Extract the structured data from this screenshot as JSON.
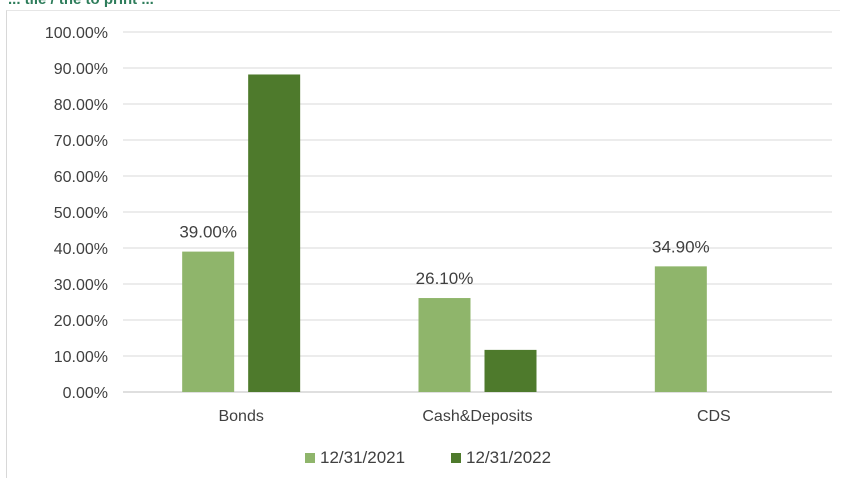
{
  "header": {
    "cut_title": "... tile / the to print ..."
  },
  "chart_data": {
    "type": "bar",
    "categories": [
      "Bonds",
      "Cash&Deposits",
      "CDS"
    ],
    "series": [
      {
        "name": "12/31/2021",
        "values": [
          39.0,
          26.1,
          34.9
        ],
        "color": "#8fb56b",
        "labels": [
          "39.00%",
          "26.10%",
          "34.90%"
        ]
      },
      {
        "name": "12/31/2022",
        "values": [
          88.2,
          11.7,
          null
        ],
        "color": "#4e7a2c",
        "labels": [
          null,
          null,
          null
        ]
      }
    ],
    "y_ticks": [
      "0.00%",
      "10.00%",
      "20.00%",
      "30.00%",
      "40.00%",
      "50.00%",
      "60.00%",
      "70.00%",
      "80.00%",
      "90.00%",
      "100.00%"
    ],
    "ylim": [
      0,
      100
    ],
    "grid": true,
    "legend_position": "bottom"
  }
}
